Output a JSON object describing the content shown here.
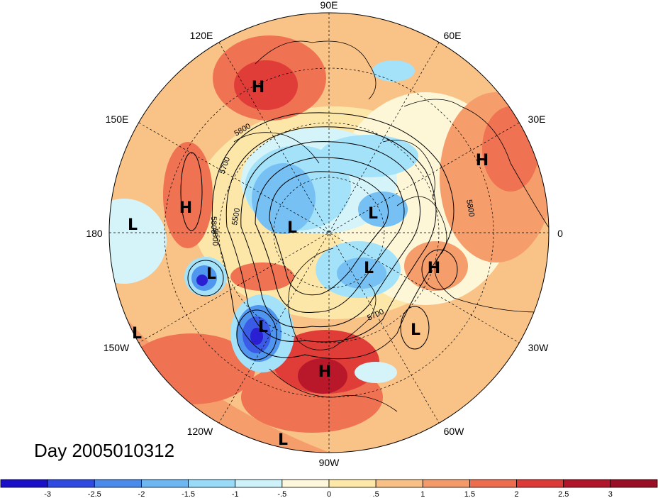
{
  "map": {
    "projection": "north-polar-stereographic",
    "longitude_labels": [
      "90E",
      "60E",
      "30E",
      "0",
      "30W",
      "60W",
      "90W",
      "120W",
      "150W",
      "180",
      "150E",
      "120E"
    ],
    "contour_labels": [
      "5800",
      "5700",
      "5500",
      "5800",
      "5800",
      "5800",
      "5700"
    ],
    "centers": [
      {
        "type": "H"
      },
      {
        "type": "H"
      },
      {
        "type": "H"
      },
      {
        "type": "H"
      },
      {
        "type": "H"
      },
      {
        "type": "L"
      },
      {
        "type": "L"
      },
      {
        "type": "L"
      },
      {
        "type": "L"
      },
      {
        "type": "L"
      },
      {
        "type": "L"
      },
      {
        "type": "L"
      },
      {
        "type": "L"
      },
      {
        "type": "L"
      }
    ],
    "shading_colors": {
      "neg3": "#2a1fd2",
      "neg2_5": "#3a5be6",
      "neg2": "#5096ee",
      "neg1_5": "#76c0f4",
      "neg1": "#a4e2fa",
      "neg0_5": "#d4f4fa",
      "zero": "#fdf7d8",
      "pos0_5": "#fde7a8",
      "pos1": "#f9c287",
      "pos1_5": "#f59d6b",
      "pos2": "#ef7252",
      "pos2_5": "#e03d39",
      "pos3": "#b8182a"
    }
  },
  "day_label": "Day 2005010312",
  "colorbar": {
    "colors": [
      "#1a10c8",
      "#2e4ae0",
      "#4a8aeb",
      "#6cb6f2",
      "#98dbf8",
      "#cdf2f9",
      "#fdf8dc",
      "#fde8a8",
      "#f8c085",
      "#f39a68",
      "#ed6c4e",
      "#dc3a37",
      "#b0152a"
    ],
    "tick_labels": [
      "-3",
      "-2.5",
      "-2",
      "-1.5",
      "-1",
      "-.5",
      "0",
      ".5",
      "1",
      "1.5",
      "2",
      "2.5",
      "3"
    ]
  }
}
